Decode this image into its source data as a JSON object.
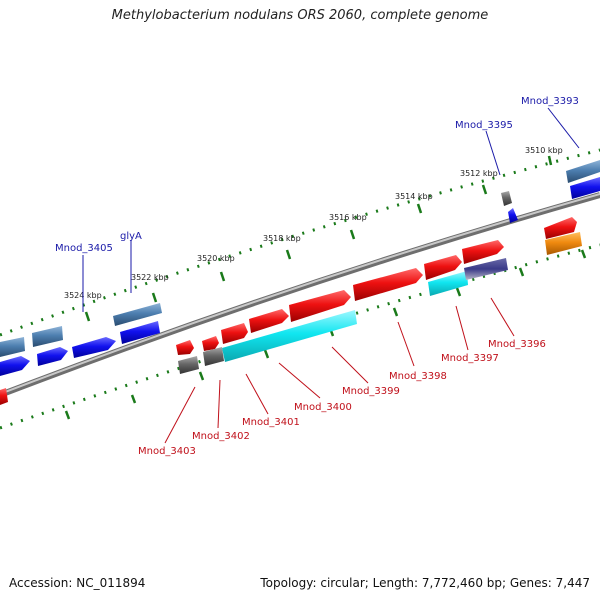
{
  "title": "Methylobacterium nodulans ORS 2060, complete genome",
  "footer": {
    "accession": "Accession: NC_011894",
    "topology": "Topology: circular; Length: 7,772,460 bp; Genes: 7,447"
  },
  "ticks": [
    {
      "label": "3510 kbp"
    },
    {
      "label": "3512 kbp"
    },
    {
      "label": "3514 kbp"
    },
    {
      "label": "3516 kbp"
    },
    {
      "label": "3518 kbp"
    },
    {
      "label": "3520 kbp"
    },
    {
      "label": "3522 kbp"
    },
    {
      "label": "3524 kbp"
    }
  ],
  "gene_labels": [
    {
      "name": "Mnod_3393",
      "color": "#1a1aa8"
    },
    {
      "name": "Mnod_3395",
      "color": "#1a1aa8"
    },
    {
      "name": "glyA",
      "color": "#1a1aa8"
    },
    {
      "name": "Mnod_3405",
      "color": "#1a1aa8"
    },
    {
      "name": "Mnod_3396",
      "color": "#c0101a"
    },
    {
      "name": "Mnod_3397",
      "color": "#c0101a"
    },
    {
      "name": "Mnod_3398",
      "color": "#c0101a"
    },
    {
      "name": "Mnod_3399",
      "color": "#c0101a"
    },
    {
      "name": "Mnod_3400",
      "color": "#c0101a"
    },
    {
      "name": "Mnod_3401",
      "color": "#c0101a"
    },
    {
      "name": "Mnod_3402",
      "color": "#c0101a"
    },
    {
      "name": "Mnod_3403",
      "color": "#c0101a"
    }
  ],
  "colors": {
    "backbone": "#8a8a8a",
    "forward_gene": "#ee1111",
    "reverse_gene": "#1111ee",
    "rna_gene": "#4d7fb0",
    "cyan_feature": "#11e6f0",
    "gray_feature": "#666666",
    "orange_feature": "#f08a10",
    "tick_mark": "#1a7a1a"
  }
}
